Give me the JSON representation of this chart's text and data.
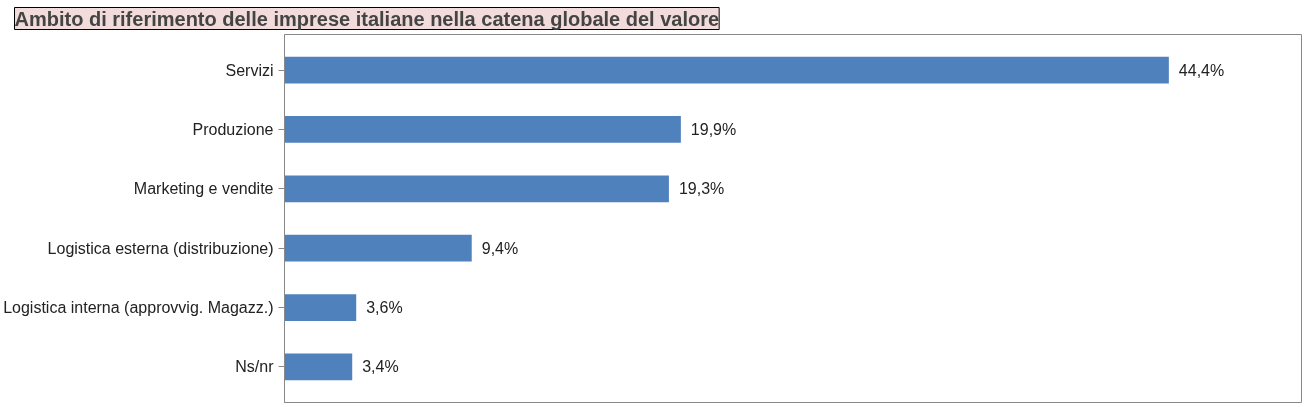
{
  "chart_data": {
    "type": "bar",
    "orientation": "horizontal",
    "title": "Ambito di riferimento delle imprese italiane nella catena globale del valore",
    "categories": [
      "Servizi",
      "Produzione",
      "Marketing e vendite",
      "Logistica esterna (distribuzione)",
      "Logistica interna (approvvig. Magazz.)",
      "Ns/nr"
    ],
    "values": [
      44.4,
      19.9,
      19.3,
      9.4,
      3.6,
      3.4
    ],
    "value_labels": [
      "44,4%",
      "19,9%",
      "19,3%",
      "9,4%",
      "3,6%",
      "3,4%"
    ],
    "color": "#4f81bd",
    "grid": false,
    "tick_labels": "y"
  }
}
